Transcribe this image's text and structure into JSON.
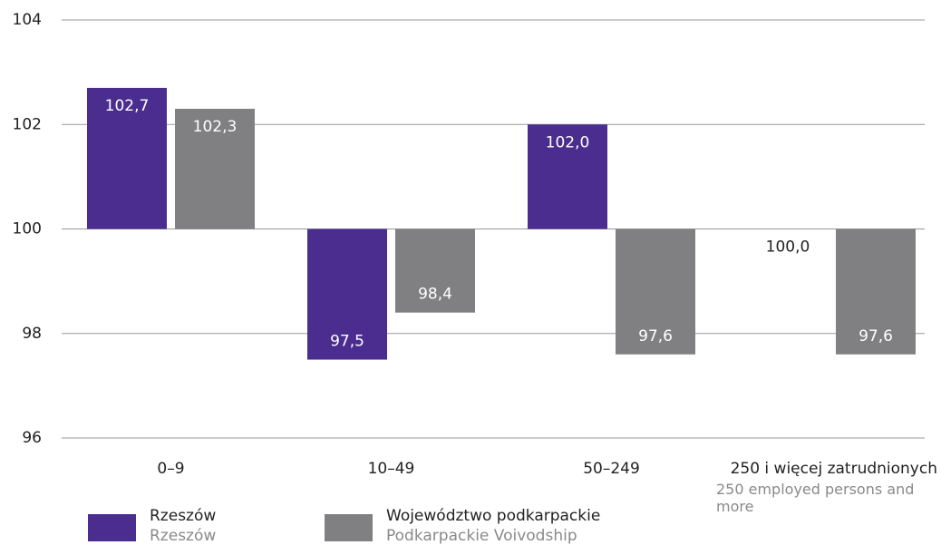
{
  "chart_data": {
    "type": "bar",
    "categories": [
      "0–9",
      "10–49",
      "50–249",
      "250 i więcej zatrudnionych"
    ],
    "category_sublabels": [
      null,
      null,
      null,
      "250 employed persons and more"
    ],
    "series": [
      {
        "name": "Rzeszów",
        "name_en": "Rzeszów",
        "color": "#4b2d8f",
        "values": [
          102.7,
          97.5,
          102.0,
          100.0
        ],
        "value_labels": [
          "102,7",
          "97,5",
          "102,0",
          "100,0"
        ]
      },
      {
        "name": "Województwo podkarpackie",
        "name_en": "Podkarpackie Voivodship",
        "color": "#808083",
        "values": [
          102.3,
          98.4,
          97.6,
          97.6
        ],
        "value_labels": [
          "102,3",
          "98,4",
          "97,6",
          "97,6"
        ]
      }
    ],
    "baseline": 100,
    "ylim": [
      96,
      104
    ],
    "yticks": [
      96,
      98,
      100,
      102,
      104
    ],
    "grid": true
  }
}
